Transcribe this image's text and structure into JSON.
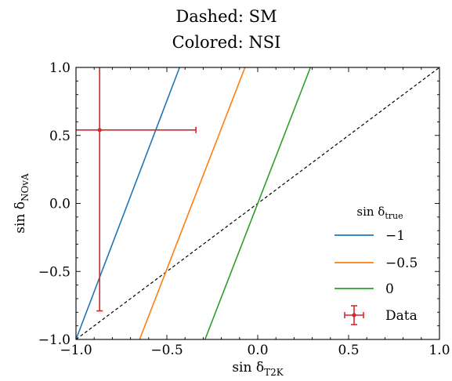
{
  "chart_data": {
    "type": "line",
    "title_lines": [
      "Dashed: SM",
      "Colored: NSI"
    ],
    "xlabel": {
      "base": "sin δ",
      "sub": "T2K"
    },
    "ylabel": {
      "base": "sin δ",
      "sub": "NOvA"
    },
    "xlim": [
      -1.0,
      1.0
    ],
    "ylim": [
      -1.0,
      1.0
    ],
    "xticks": [
      -1.0,
      -0.5,
      0.0,
      0.5,
      1.0
    ],
    "yticks": [
      -1.0,
      -0.5,
      0.0,
      0.5,
      1.0
    ],
    "xtick_labels": [
      "−1.0",
      "−0.5",
      "0.0",
      "0.5",
      "1.0"
    ],
    "ytick_labels": [
      "−1.0",
      "−0.5",
      "0.0",
      "0.5",
      "1.0"
    ],
    "grid": false,
    "legend": {
      "title_base": "sin δ",
      "title_sub": "true",
      "placement": "lower-right"
    },
    "sm_line": {
      "style": "dashed",
      "color": "#000000",
      "x": [
        -1.0,
        1.0
      ],
      "y": [
        -1.0,
        1.0
      ]
    },
    "series": [
      {
        "name": "−1",
        "color": "#1f77b4",
        "x": [
          -1.0,
          -0.43
        ],
        "y": [
          -1.0,
          1.0
        ]
      },
      {
        "name": "−0.5",
        "color": "#ff7f0e",
        "x": [
          -0.65,
          -0.07
        ],
        "y": [
          -1.0,
          1.0
        ]
      },
      {
        "name": "0",
        "color": "#2ca02c",
        "x": [
          -0.29,
          0.29
        ],
        "y": [
          -1.0,
          1.0
        ]
      }
    ],
    "data_point": {
      "name": "Data",
      "color": "#d62728",
      "x": -0.87,
      "y": 0.54,
      "xerr": [
        0.13,
        0.53
      ],
      "yerr": [
        1.33,
        0.46
      ]
    }
  }
}
